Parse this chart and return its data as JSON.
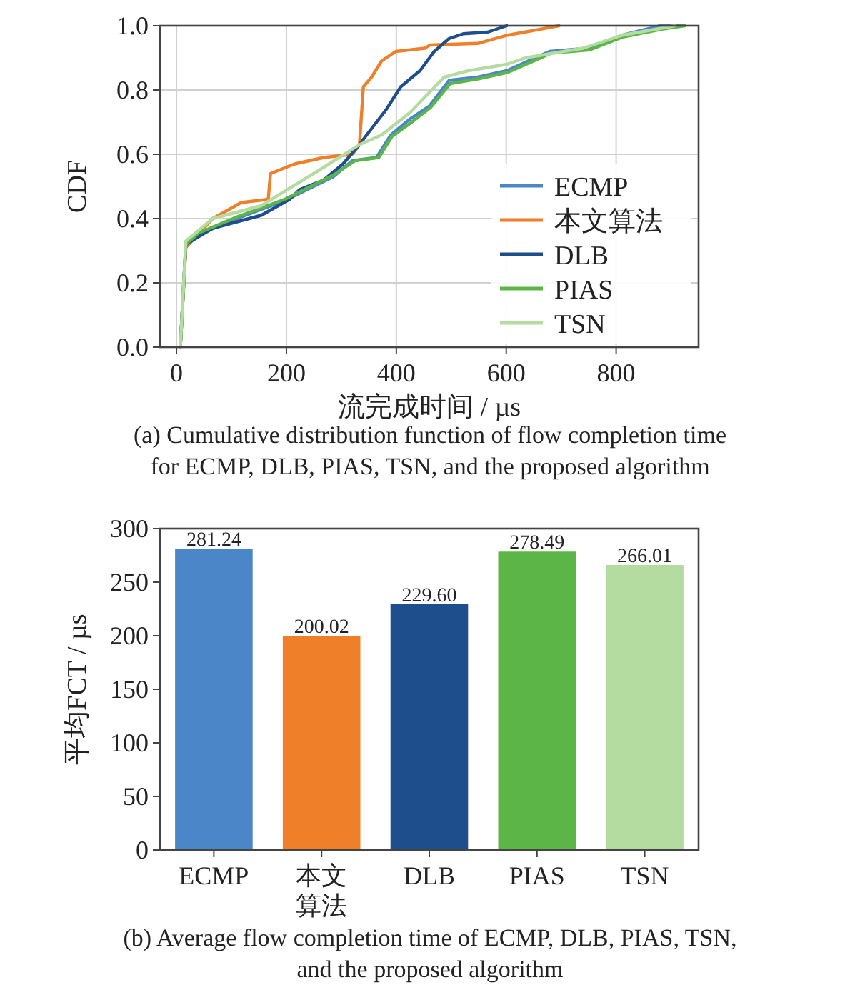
{
  "chart_data": [
    {
      "type": "line",
      "xlabel": "流完成时间 / µs",
      "ylabel": "CDF",
      "xlim": [
        -30,
        950
      ],
      "xticks": [
        0,
        200,
        400,
        600,
        800
      ],
      "ylim": [
        0,
        1.0
      ],
      "yticks": [
        {
          "value": 0,
          "label": "0.0"
        },
        {
          "value": 0.2,
          "label": "0.2"
        },
        {
          "value": 0.4,
          "label": "0.4"
        },
        {
          "value": 0.6,
          "label": "0.6"
        },
        {
          "value": 0.8,
          "label": "0.8"
        },
        {
          "value": 1.0,
          "label": "1.0"
        }
      ],
      "grid": true,
      "legend": "bottom right",
      "annotations": [
        "(a) Cumulative distribution function of flow completion time\nfor ECMP, DLB, PIAS, TSN, and the proposed algorithm"
      ],
      "series": [
        {
          "name": "ECMP",
          "color": "#4a86c8",
          "x": [
            7,
            17,
            40,
            110,
            197,
            285,
            320,
            364,
            390,
            425,
            460,
            496,
            548,
            601,
            679,
            749,
            810,
            881,
            920
          ],
          "values": [
            0,
            0.32,
            0.35,
            0.4,
            0.456,
            0.53,
            0.58,
            0.59,
            0.66,
            0.71,
            0.75,
            0.83,
            0.84,
            0.86,
            0.92,
            0.93,
            0.97,
            1.0,
            1.0
          ]
        },
        {
          "name": "本文算法",
          "color": "#f07f2a",
          "x": [
            7,
            17,
            66,
            118,
            167,
            171,
            215,
            268,
            320,
            333,
            340,
            355,
            373,
            399,
            452,
            461,
            548,
            601,
            696
          ],
          "values": [
            0,
            0.31,
            0.4,
            0.45,
            0.46,
            0.54,
            0.57,
            0.59,
            0.6,
            0.63,
            0.81,
            0.84,
            0.89,
            0.92,
            0.93,
            0.94,
            0.945,
            0.97,
            1.0
          ]
        },
        {
          "name": "DLB",
          "color": "#1f4e8c",
          "x": [
            7,
            17,
            66,
            154,
            206,
            224,
            268,
            303,
            333,
            346,
            382,
            408,
            443,
            469,
            496,
            522,
            566,
            601
          ],
          "values": [
            0,
            0.32,
            0.37,
            0.41,
            0.46,
            0.49,
            0.52,
            0.57,
            0.63,
            0.66,
            0.74,
            0.81,
            0.86,
            0.92,
            0.96,
            0.975,
            0.98,
            1.0
          ]
        },
        {
          "name": "PIAS",
          "color": "#5cb647",
          "x": [
            7,
            17,
            40,
            110,
            197,
            285,
            325,
            368,
            392,
            428,
            462,
            498,
            550,
            603,
            682,
            752,
            812,
            885,
            925
          ],
          "values": [
            0,
            0.32,
            0.355,
            0.405,
            0.46,
            0.535,
            0.58,
            0.59,
            0.655,
            0.7,
            0.745,
            0.82,
            0.835,
            0.855,
            0.915,
            0.925,
            0.965,
            0.99,
            1.0
          ]
        },
        {
          "name": "TSN",
          "color": "#b5dca0",
          "x": [
            7,
            17,
            66,
            154,
            259,
            333,
            373,
            425,
            487,
            531,
            601,
            635,
            740,
            810,
            907
          ],
          "values": [
            0,
            0.33,
            0.4,
            0.44,
            0.55,
            0.63,
            0.66,
            0.73,
            0.84,
            0.86,
            0.88,
            0.9,
            0.93,
            0.97,
            1.0
          ]
        }
      ]
    },
    {
      "type": "bar",
      "ylabel": "平均FCT / µs",
      "categories": [
        "ECMP",
        "本文算法",
        "DLB",
        "PIAS",
        "TSN"
      ],
      "values": [
        281.24,
        200.02,
        229.6,
        278.49,
        266.01
      ],
      "value_labels": [
        "281.24",
        "200.02",
        "229.60",
        "278.49",
        "266.01"
      ],
      "colors": [
        "#4a86c8",
        "#f07f2a",
        "#1f4e8c",
        "#5cb647",
        "#b5dca0"
      ],
      "ylim": [
        0,
        300
      ],
      "yticks": [
        0,
        50,
        100,
        150,
        200,
        250,
        300
      ],
      "annotations": [
        "(b) Average flow completion time of ECMP, DLB, PIAS, TSN,\nand the proposed algorithm"
      ]
    }
  ]
}
